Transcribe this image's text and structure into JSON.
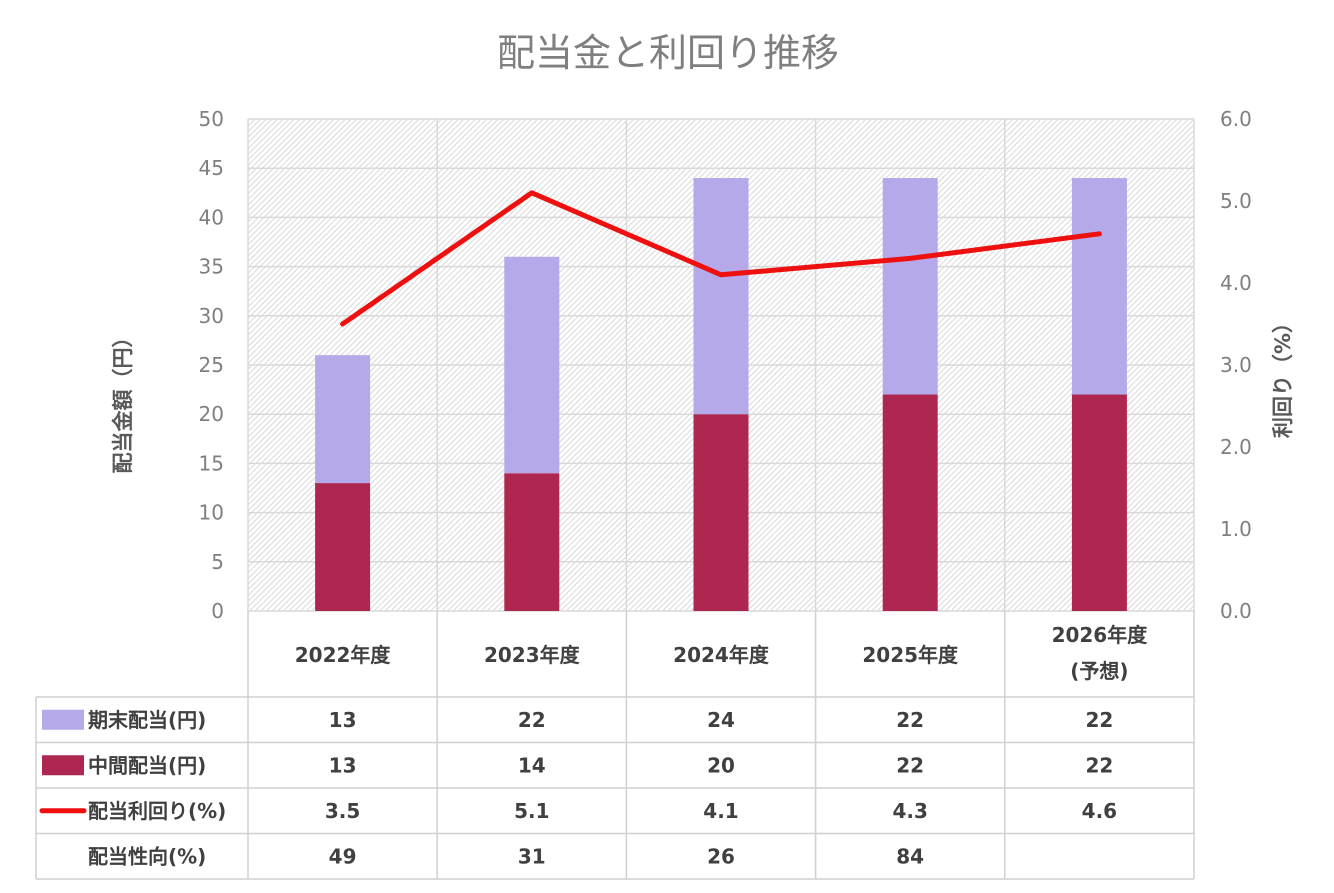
{
  "chart_data": {
    "type": "bar",
    "title": "配当金と利回り推移",
    "categories": [
      "2022年度",
      "2023年度",
      "2024年度",
      "2025年度",
      "2026年度\n(予想)"
    ],
    "ylabel": "配当金額（円）",
    "y2label": "利回り（%）",
    "ylim": [
      0,
      50
    ],
    "y2lim": [
      0,
      6.0
    ],
    "yticks": [
      "0",
      "5",
      "10",
      "15",
      "20",
      "25",
      "30",
      "35",
      "40",
      "45",
      "50"
    ],
    "y2ticks": [
      "0.0",
      "1.0",
      "2.0",
      "3.0",
      "4.0",
      "5.0",
      "6.0"
    ],
    "stacked": true,
    "grid": true,
    "series": [
      {
        "name": "中間配当(円)",
        "type": "bar",
        "color": "#ad2750",
        "values": [
          13,
          14,
          20,
          22,
          22
        ],
        "table": [
          "13",
          "14",
          "20",
          "22",
          "22"
        ]
      },
      {
        "name": "期末配当(円)",
        "type": "bar",
        "color": "#b6a9e9",
        "values": [
          13,
          22,
          24,
          22,
          22
        ],
        "table": [
          "13",
          "22",
          "24",
          "22",
          "22"
        ]
      },
      {
        "name": "配当利回り(%)",
        "type": "line",
        "axis": "right",
        "color": "#ee0f0f",
        "values": [
          3.5,
          5.1,
          4.1,
          4.3,
          4.6
        ],
        "table": [
          "3.5",
          "5.1",
          "4.1",
          "4.3",
          "4.6"
        ]
      }
    ],
    "table_rows": [
      {
        "name": "期末配当(円)",
        "legend": "bar",
        "color": "#b6a9e9",
        "values": [
          "13",
          "22",
          "24",
          "22",
          "22"
        ]
      },
      {
        "name": "中間配当(円)",
        "legend": "bar",
        "color": "#ad2750",
        "values": [
          "13",
          "14",
          "20",
          "22",
          "22"
        ]
      },
      {
        "name": "配当利回り(%)",
        "legend": "line",
        "color": "#ee0f0f",
        "values": [
          "3.5",
          "5.1",
          "4.1",
          "4.3",
          "4.6"
        ]
      },
      {
        "name": "配当性向(%)",
        "legend": "none",
        "color": "",
        "values": [
          "49",
          "31",
          "26",
          "84",
          ""
        ]
      }
    ]
  }
}
